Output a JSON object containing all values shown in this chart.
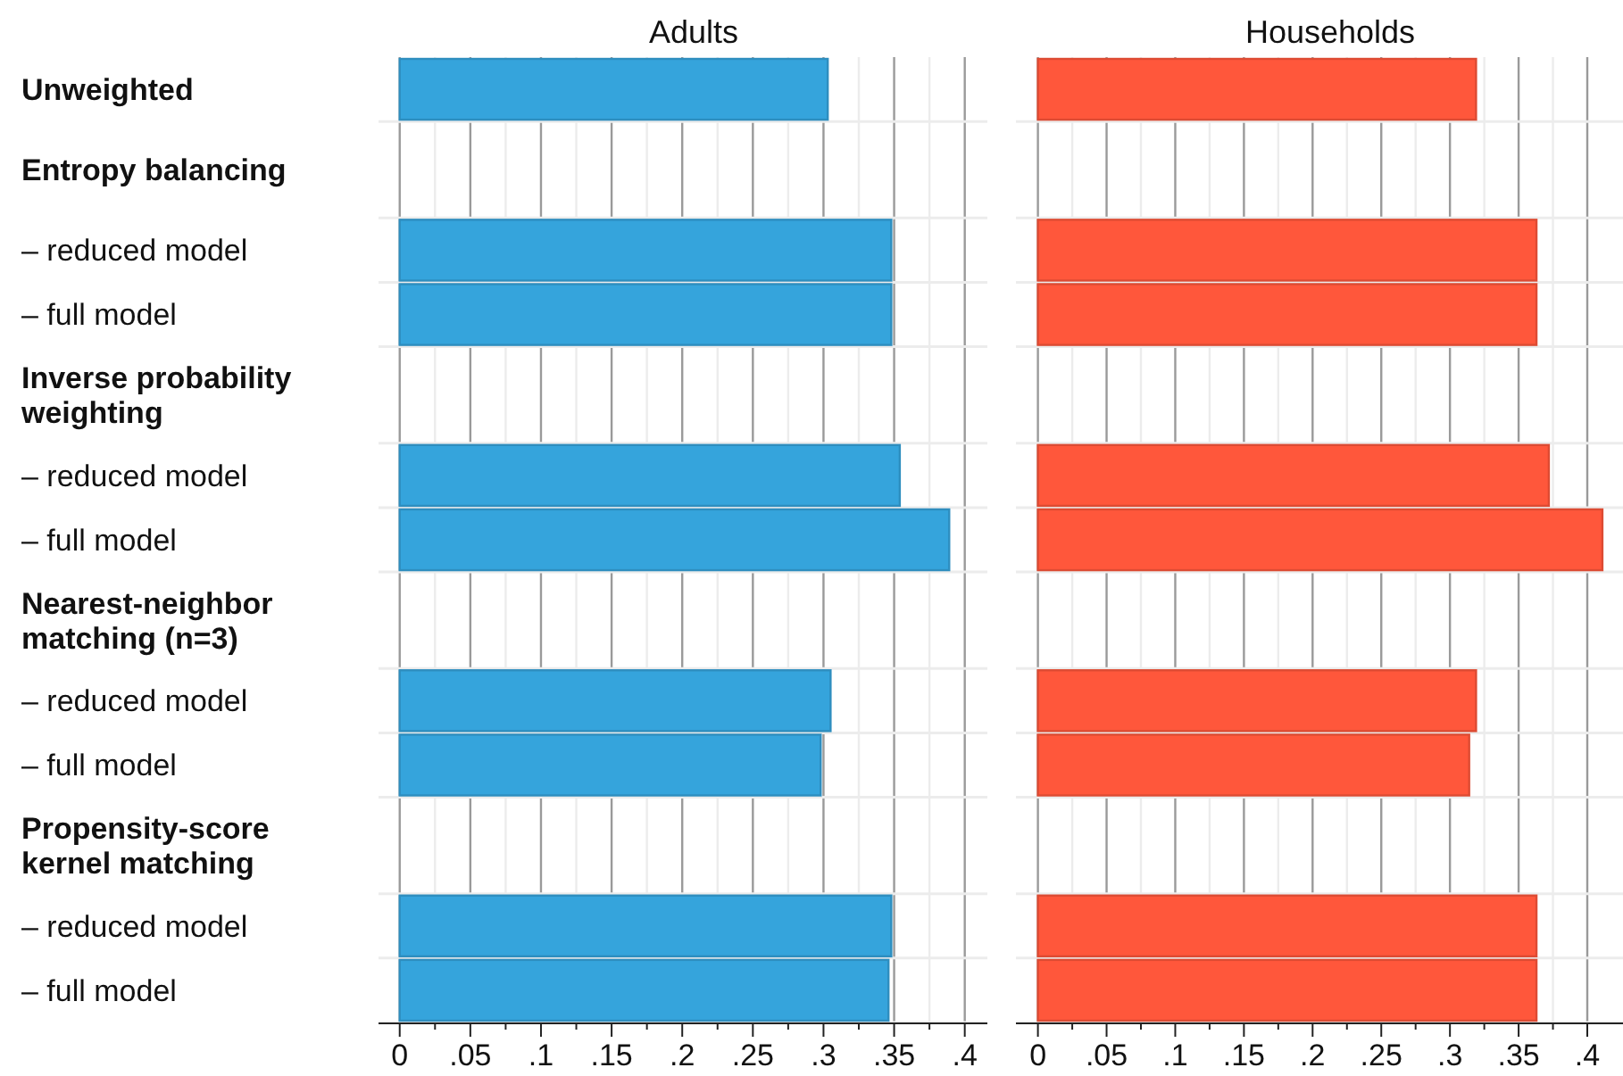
{
  "chart_data": [
    {
      "type": "bar",
      "orientation": "horizontal",
      "title": "Adults",
      "categories": [
        "Unweighted",
        "Entropy balancing",
        "– reduced model",
        "– full model",
        "Inverse probability weighting",
        "– reduced model",
        "– full model",
        "Nearest-neighbor matching (n=3)",
        "– reduced model",
        "– full model",
        "Propensity-score kernel matching",
        "– reduced model",
        "– full model"
      ],
      "series": [
        {
          "color": "#35a4dc",
          "values": [
            0.303,
            null,
            0.348,
            0.348,
            null,
            0.354,
            0.389,
            null,
            0.305,
            0.298,
            null,
            0.348,
            0.346
          ]
        }
      ],
      "xlim": [
        -0.015,
        0.416
      ],
      "xticks": [
        0,
        {
          "value": 0.025,
          "label": null
        },
        {
          "value": 0.05,
          "label": ".05"
        },
        {
          "value": 0.075,
          "label": null
        },
        {
          "value": 0.1,
          "label": ".1"
        },
        {
          "value": 0.125,
          "label": null
        },
        {
          "value": 0.15,
          "label": ".15"
        },
        {
          "value": 0.175,
          "label": null
        },
        {
          "value": 0.2,
          "label": ".2"
        },
        {
          "value": 0.225,
          "label": null
        },
        {
          "value": 0.25,
          "label": ".25"
        },
        {
          "value": 0.275,
          "label": null
        },
        {
          "value": 0.3,
          "label": ".3"
        },
        {
          "value": 0.325,
          "label": null
        },
        {
          "value": 0.35,
          "label": ".35"
        },
        {
          "value": 0.375,
          "label": null
        },
        {
          "value": 0.4,
          "label": ".4"
        }
      ],
      "grid": true
    },
    {
      "type": "bar",
      "orientation": "horizontal",
      "title": "Households",
      "categories": [
        null,
        null,
        null,
        null,
        null,
        null,
        null,
        null,
        null,
        null,
        null,
        null,
        null
      ],
      "series": [
        {
          "color": "#ff573b",
          "values": [
            0.319,
            null,
            0.363,
            0.363,
            null,
            0.372,
            0.411,
            null,
            0.319,
            0.314,
            null,
            0.363,
            0.363
          ]
        }
      ],
      "xlim": [
        -0.016,
        0.426
      ],
      "xticks": [
        0,
        {
          "value": 0.025,
          "label": null
        },
        {
          "value": 0.05,
          "label": ".05"
        },
        {
          "value": 0.075,
          "label": null
        },
        {
          "value": 0.1,
          "label": ".1"
        },
        {
          "value": 0.125,
          "label": null
        },
        {
          "value": 0.15,
          "label": ".15"
        },
        {
          "value": 0.175,
          "label": null
        },
        {
          "value": 0.2,
          "label": ".2"
        },
        {
          "value": 0.225,
          "label": null
        },
        {
          "value": 0.25,
          "label": ".25"
        },
        {
          "value": 0.275,
          "label": null
        },
        {
          "value": 0.3,
          "label": ".3"
        },
        {
          "value": 0.325,
          "label": null
        },
        {
          "value": 0.35,
          "label": ".35"
        },
        {
          "value": 0.375,
          "label": null
        },
        {
          "value": 0.4,
          "label": ".4"
        }
      ],
      "grid": true,
      "tick_labels": "x"
    }
  ]
}
